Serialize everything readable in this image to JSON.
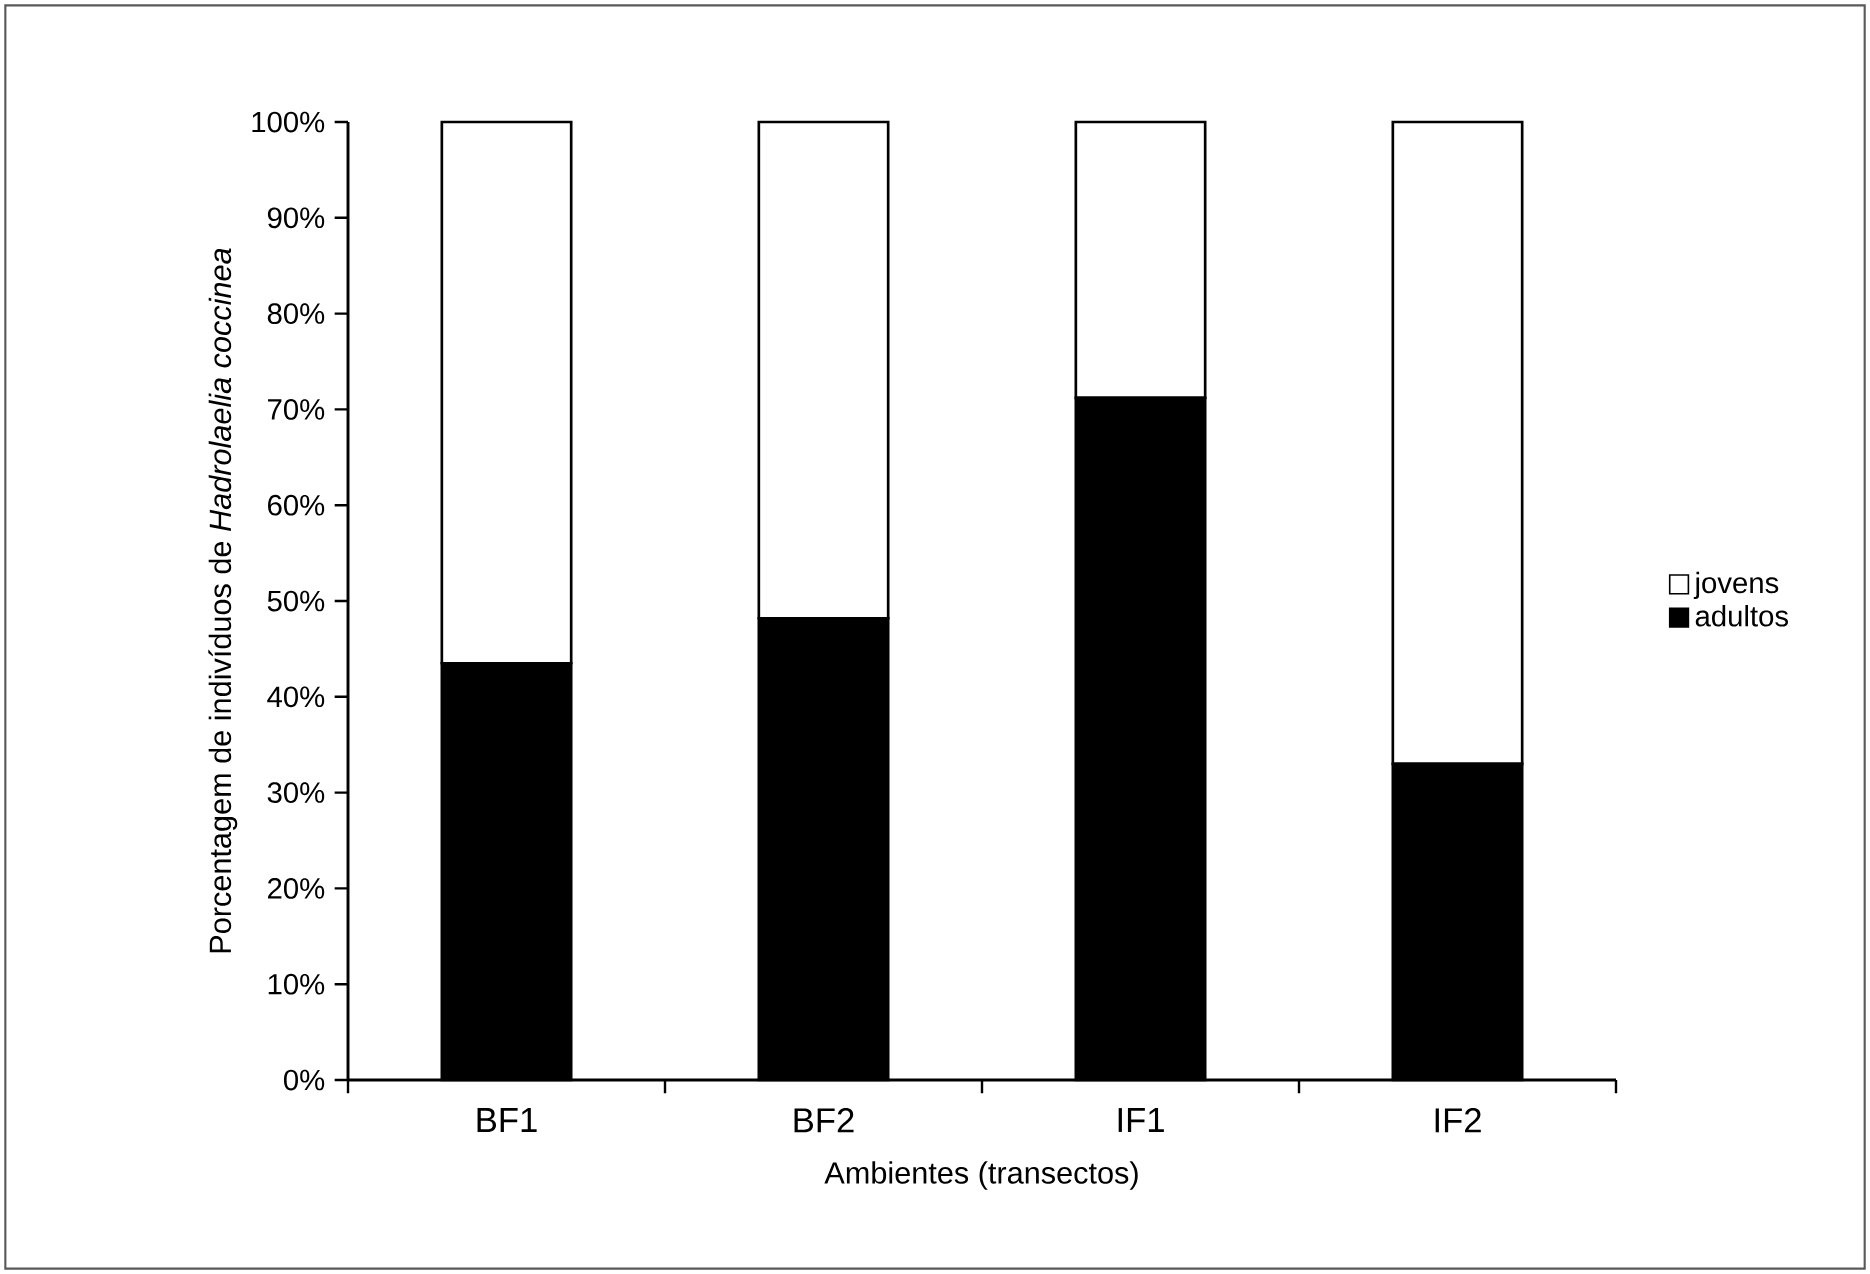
{
  "chart_data": {
    "type": "bar",
    "stacked": true,
    "xlabel": "Ambientes (transectos)",
    "ylabel": "Porcentagem de indivíduos de *Hadrolaelia coccinea*",
    "categories": [
      "BF1",
      "BF2",
      "IF1",
      "IF2"
    ],
    "series": [
      {
        "name": "adultos",
        "color": "#000000",
        "values": [
          43.5,
          48.2,
          71.2,
          33.0
        ]
      },
      {
        "name": "jovens",
        "color": "#ffffff",
        "values": [
          56.5,
          51.8,
          28.8,
          67.0
        ]
      }
    ],
    "ylim": [
      0,
      100
    ],
    "yticks": [
      {
        "value": 0,
        "label": "0%"
      },
      {
        "value": 10,
        "label": "10%"
      },
      {
        "value": 20,
        "label": "20%"
      },
      {
        "value": 30,
        "label": "30%"
      },
      {
        "value": 40,
        "label": "40%"
      },
      {
        "value": 50,
        "label": "50%"
      },
      {
        "value": 60,
        "label": "60%"
      },
      {
        "value": 70,
        "label": "70%"
      },
      {
        "value": 80,
        "label": "80%"
      },
      {
        "value": 90,
        "label": "90%"
      },
      {
        "value": 100,
        "label": "100%"
      }
    ],
    "legend": "right"
  }
}
